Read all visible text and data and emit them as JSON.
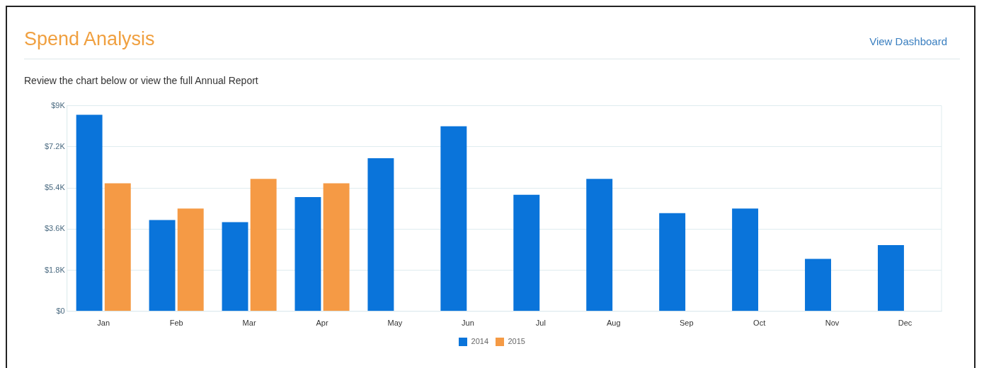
{
  "chart_data": {
    "type": "bar",
    "title": "Spend Analysis",
    "subtitle": "Review the chart below or view the full Annual Report",
    "annotations": [
      "View Dashboard"
    ],
    "categories": [
      "Jan",
      "Feb",
      "Mar",
      "Apr",
      "May",
      "Jun",
      "Jul",
      "Aug",
      "Sep",
      "Oct",
      "Nov",
      "Dec"
    ],
    "series": [
      {
        "name": "2014",
        "color": "#0a74da",
        "values": [
          8600,
          4000,
          3900,
          5000,
          6700,
          8100,
          5100,
          5800,
          4300,
          4500,
          2300,
          2900
        ]
      },
      {
        "name": "2015",
        "color": "#f59a45",
        "values": [
          5600,
          4500,
          5800,
          5600,
          null,
          null,
          null,
          null,
          null,
          null,
          null,
          null
        ]
      }
    ],
    "ylim": [
      0,
      9000
    ],
    "yticks": [
      {
        "value": 0,
        "label": "$0"
      },
      {
        "value": 1800,
        "label": "$1.8K"
      },
      {
        "value": 3600,
        "label": "$3.6K"
      },
      {
        "value": 5400,
        "label": "$5.4K"
      },
      {
        "value": 7200,
        "label": "$7.2K"
      },
      {
        "value": 9000,
        "label": "$9K"
      }
    ],
    "grid": "y",
    "legend": "bottom"
  }
}
